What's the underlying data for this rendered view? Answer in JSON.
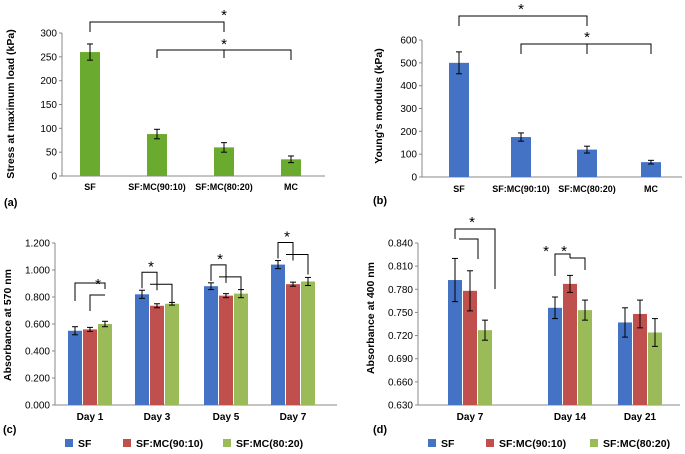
{
  "chart_data": [
    {
      "type": "bar",
      "panel": "(a)",
      "ylabel": "Stress at maximum load (kPa)",
      "ylim": [
        0,
        300
      ],
      "yticks": [
        0,
        50,
        100,
        150,
        200,
        250,
        300
      ],
      "categories": [
        "SF",
        "SF:MC(90:10)",
        "SF:MC(80:20)",
        "MC"
      ],
      "values": [
        260,
        88,
        60,
        35
      ],
      "errors": [
        17,
        10,
        10,
        7
      ],
      "color": "#6aaa2e",
      "significance": [
        {
          "from": 0,
          "to": 2,
          "label": "*"
        },
        {
          "from": 1,
          "to": 3,
          "label": "*"
        }
      ]
    },
    {
      "type": "bar",
      "panel": "(b)",
      "ylabel": "Young's modulus (kPa)",
      "ylim": [
        0,
        600
      ],
      "yticks": [
        0,
        100,
        200,
        300,
        400,
        500,
        600
      ],
      "categories": [
        "SF",
        "SF:MC(90:10)",
        "SF:MC(80:20)",
        "MC"
      ],
      "values": [
        500,
        175,
        120,
        65
      ],
      "errors": [
        48,
        18,
        15,
        8
      ],
      "color": "#4472c4",
      "significance": [
        {
          "from": 0,
          "to": 2,
          "label": "*"
        },
        {
          "from": 1,
          "to": 3,
          "label": "*"
        }
      ]
    },
    {
      "type": "bar",
      "panel": "(c)",
      "ylabel": "Absorbance at 570 nm",
      "ylim": [
        0,
        1.2
      ],
      "yticks": [
        "0.000",
        "0.200",
        "0.400",
        "0.600",
        "0.800",
        "1.000",
        "1.200"
      ],
      "categories": [
        "Day 1",
        "Day 3",
        "Day 5",
        "Day 7"
      ],
      "series": [
        {
          "name": "SF",
          "values": [
            0.55,
            0.82,
            0.88,
            1.04
          ],
          "errors": [
            0.03,
            0.03,
            0.025,
            0.03
          ]
        },
        {
          "name": "SF:MC(90:10)",
          "values": [
            0.56,
            0.735,
            0.81,
            0.895
          ],
          "errors": [
            0.015,
            0.015,
            0.015,
            0.015
          ]
        },
        {
          "name": "SF:MC(80:20)",
          "values": [
            0.6,
            0.75,
            0.825,
            0.915
          ],
          "errors": [
            0.02,
            0.01,
            0.03,
            0.03
          ]
        }
      ],
      "significance": [
        {
          "cat": 0,
          "pairs": [
            [
              0,
              2
            ],
            [
              1,
              2
            ]
          ],
          "label": "*"
        },
        {
          "cat": 1,
          "pairs": [
            [
              0,
              1
            ],
            [
              0,
              2
            ]
          ],
          "label": "*"
        },
        {
          "cat": 2,
          "pairs": [
            [
              0,
              1
            ],
            [
              0,
              2
            ]
          ],
          "label": "*"
        },
        {
          "cat": 3,
          "pairs": [
            [
              0,
              1
            ],
            [
              0,
              2
            ]
          ],
          "label": "*"
        }
      ]
    },
    {
      "type": "bar",
      "panel": "(d)",
      "ylabel": "Absorbance at 400 nm",
      "ylim": [
        0.63,
        0.84
      ],
      "yticks": [
        "0.630",
        "0.660",
        "0.690",
        "0.720",
        "0.750",
        "0.780",
        "0.810",
        "0.840"
      ],
      "categories": [
        "Day 7",
        "Day 14",
        "Day 21"
      ],
      "series": [
        {
          "name": "SF",
          "values": [
            0.792,
            0.756,
            0.737
          ],
          "errors": [
            0.028,
            0.014,
            0.019
          ]
        },
        {
          "name": "SF:MC(90:10)",
          "values": [
            0.778,
            0.787,
            0.748
          ],
          "errors": [
            0.026,
            0.011,
            0.018
          ]
        },
        {
          "name": "SF:MC(80:20)",
          "values": [
            0.727,
            0.753,
            0.724
          ],
          "errors": [
            0.013,
            0.013,
            0.018
          ]
        }
      ],
      "significance": [
        {
          "cat": 0,
          "pairs": [
            [
              0,
              1
            ],
            [
              0,
              2
            ]
          ],
          "label": "*"
        },
        {
          "cat": 1,
          "pairs": [
            [
              0,
              1
            ],
            [
              1,
              2
            ]
          ],
          "labels": [
            "*",
            "*"
          ]
        }
      ]
    }
  ],
  "colors": {
    "SF": "#4472c4",
    "SF:MC(90:10)": "#c0504d",
    "SF:MC(80:20)": "#9bbb59"
  },
  "legend": [
    "SF",
    "SF:MC(90:10)",
    "SF:MC(80:20)"
  ]
}
